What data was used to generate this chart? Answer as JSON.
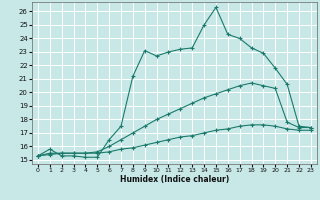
{
  "xlabel": "Humidex (Indice chaleur)",
  "bg_color": "#c8e8e8",
  "grid_color": "#ffffff",
  "line_color": "#1a7a6a",
  "xlim": [
    -0.5,
    23.5
  ],
  "ylim": [
    14.7,
    26.7
  ],
  "xticks": [
    0,
    1,
    2,
    3,
    4,
    5,
    6,
    7,
    8,
    9,
    10,
    11,
    12,
    13,
    14,
    15,
    16,
    17,
    18,
    19,
    20,
    21,
    22,
    23
  ],
  "yticks": [
    15,
    16,
    17,
    18,
    19,
    20,
    21,
    22,
    23,
    24,
    25,
    26
  ],
  "line1_x": [
    0,
    1,
    2,
    3,
    4,
    5,
    6,
    7,
    8,
    9,
    10,
    11,
    12,
    13,
    14,
    15,
    16,
    17,
    18,
    19,
    20,
    21,
    22,
    23
  ],
  "line1_y": [
    15.3,
    15.8,
    15.3,
    15.3,
    15.2,
    15.2,
    16.5,
    17.5,
    21.2,
    23.1,
    22.7,
    23.0,
    23.2,
    23.3,
    25.0,
    26.3,
    24.3,
    24.0,
    23.3,
    22.9,
    21.8,
    20.6,
    17.5,
    17.4
  ],
  "line2_x": [
    0,
    1,
    2,
    3,
    4,
    5,
    6,
    7,
    8,
    9,
    10,
    11,
    12,
    13,
    14,
    15,
    16,
    17,
    18,
    19,
    20,
    21,
    22,
    23
  ],
  "line2_y": [
    15.3,
    15.5,
    15.5,
    15.5,
    15.5,
    15.6,
    16.0,
    16.5,
    17.0,
    17.5,
    18.0,
    18.4,
    18.8,
    19.2,
    19.6,
    19.9,
    20.2,
    20.5,
    20.7,
    20.5,
    20.3,
    17.8,
    17.4,
    17.4
  ],
  "line3_x": [
    0,
    1,
    2,
    3,
    4,
    5,
    6,
    7,
    8,
    9,
    10,
    11,
    12,
    13,
    14,
    15,
    16,
    17,
    18,
    19,
    20,
    21,
    22,
    23
  ],
  "line3_y": [
    15.3,
    15.4,
    15.5,
    15.5,
    15.5,
    15.5,
    15.6,
    15.8,
    15.9,
    16.1,
    16.3,
    16.5,
    16.7,
    16.8,
    17.0,
    17.2,
    17.3,
    17.5,
    17.6,
    17.6,
    17.5,
    17.3,
    17.2,
    17.2
  ]
}
